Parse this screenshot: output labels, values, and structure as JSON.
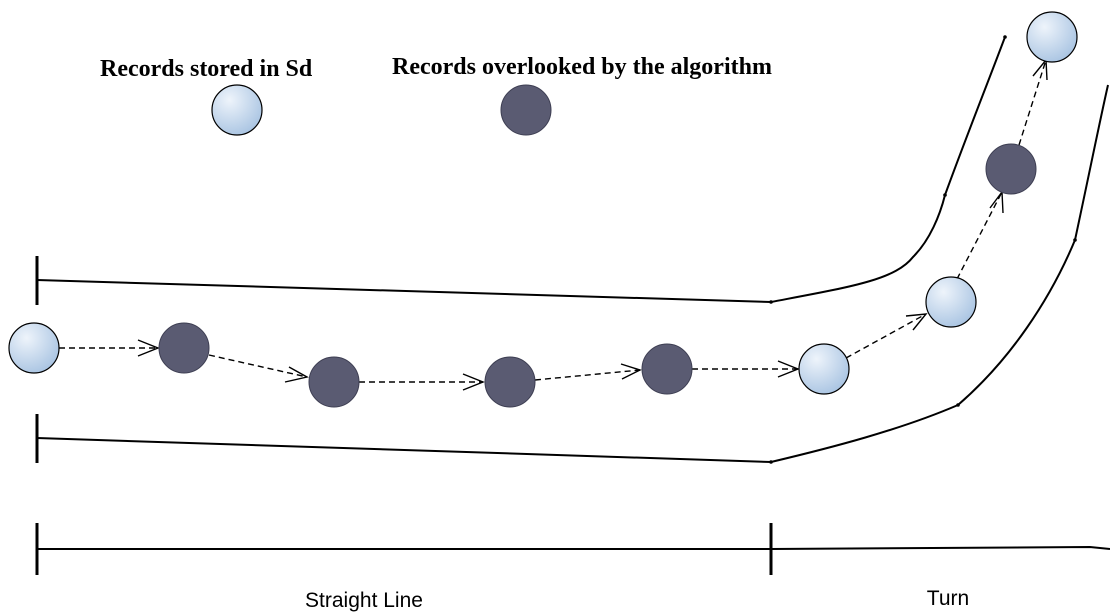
{
  "legend": {
    "stored_label": "Records stored in Sd",
    "overlooked_label": "Records overlooked by the algorithm"
  },
  "sections": {
    "straight_label": "Straight Line",
    "turn_label": "Turn"
  },
  "colors": {
    "stored_fill_light": "#eef4fb",
    "stored_fill_dark": "#a9c4e2",
    "overlooked_fill": "#5a5b72",
    "line": "#000000"
  },
  "records_sequence": [
    "stored",
    "overlooked",
    "overlooked",
    "overlooked",
    "overlooked",
    "stored",
    "stored",
    "overlooked",
    "stored"
  ]
}
